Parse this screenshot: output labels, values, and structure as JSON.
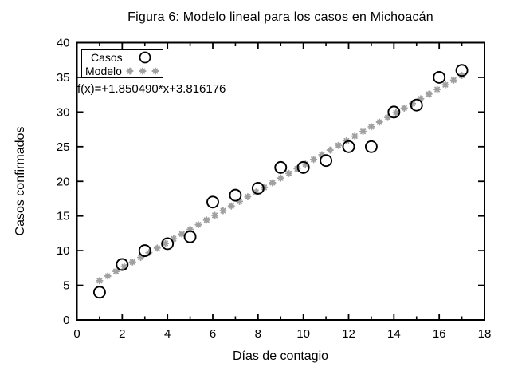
{
  "title": "Figura 6: Modelo lineal para los casos en Michoacán",
  "colors": {
    "background": "#ffffff",
    "foreground": "#000000",
    "model_gray": "#a0a0a0"
  },
  "legend": {
    "items": [
      {
        "label": "Casos",
        "marker": "open-circle"
      },
      {
        "label": "Modelo",
        "marker": "asterisk"
      }
    ]
  },
  "annotation": {
    "equation": "f(x)=+1.850490*x+3.816176"
  },
  "chart_data": {
    "type": "scatter",
    "title": "Figura 6: Modelo lineal para los casos en Michoacán",
    "xlabel": "Días de contagio",
    "ylabel": "Casos confirmados",
    "xlim": [
      0,
      18
    ],
    "ylim": [
      0,
      40
    ],
    "x_ticks": [
      0,
      2,
      4,
      6,
      8,
      10,
      12,
      14,
      16,
      18
    ],
    "x_minor_ticks": [
      1,
      3,
      5,
      7,
      9,
      11,
      13,
      15,
      17
    ],
    "y_ticks": [
      0,
      5,
      10,
      15,
      20,
      25,
      30,
      35,
      40
    ],
    "grid": false,
    "legend_position": "top-left-inside",
    "series": [
      {
        "name": "Casos",
        "type": "scatter",
        "marker": "open-circle",
        "color": "#000000",
        "x": [
          1,
          2,
          3,
          4,
          5,
          6,
          7,
          8,
          9,
          10,
          11,
          12,
          13,
          14,
          15,
          16,
          17
        ],
        "y": [
          4,
          8,
          10,
          11,
          12,
          17,
          18,
          19,
          22,
          22,
          23,
          25,
          25,
          30,
          31,
          35,
          36
        ]
      },
      {
        "name": "Modelo",
        "type": "model-points",
        "marker": "asterisk",
        "color": "#a0a0a0",
        "equation": "f(x)=+1.850490*x+3.816176",
        "slope": 1.85049,
        "intercept": 3.816176,
        "x_start": 1,
        "x_end": 17,
        "n_points": 45
      }
    ]
  }
}
